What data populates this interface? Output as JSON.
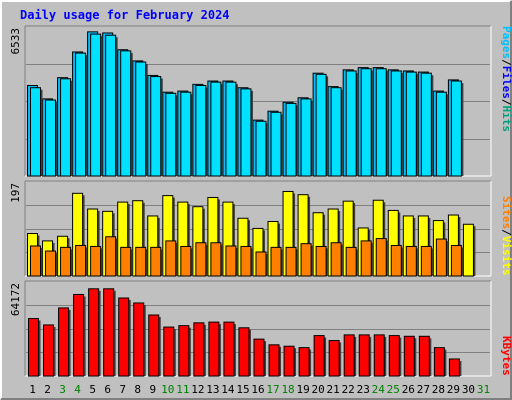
{
  "title": "Daily usage for February 2024",
  "colors": {
    "background": "#c0c0c0",
    "frame_light": "#ffffff",
    "frame_dark": "#808080",
    "title": "#0000ff",
    "gridline": "#808080",
    "axis_text": "#000000",
    "weekend_text": "#008000",
    "hits": "#00bfff",
    "files": "#00e0ff",
    "sites": "#ff8000",
    "visits": "#ffff00",
    "kbytes": "#ff0000",
    "legend_hits": "#00a080",
    "legend_files": "#0000ff",
    "legend_pages": "#00c0ff",
    "legend_sites": "#ff8000",
    "legend_visits": "#ffff00",
    "legend_kbytes": "#ff0000",
    "bar_edge": "#000000",
    "bar_shadow": "#404040"
  },
  "legend": {
    "hits": "Hits",
    "files": "Files",
    "pages": "Pages",
    "sites": "Sites",
    "visits": "Visits",
    "kbytes": "KBytes",
    "separator": "/"
  },
  "chart_data": {
    "type": "bar",
    "title": "Daily usage for February 2024",
    "x": [
      "1",
      "2",
      "3",
      "4",
      "5",
      "6",
      "7",
      "8",
      "9",
      "10",
      "11",
      "12",
      "13",
      "14",
      "15",
      "16",
      "17",
      "18",
      "19",
      "20",
      "21",
      "22",
      "23",
      "24",
      "25",
      "26",
      "27",
      "28",
      "29",
      "30",
      "31"
    ],
    "weekend_days": [
      "3",
      "4",
      "10",
      "11",
      "17",
      "18",
      "24",
      "25",
      "31"
    ],
    "panels": [
      {
        "name": "hits-files",
        "ymax_label": "6533",
        "ylim": [
          0,
          6533
        ],
        "series": [
          {
            "name": "Hits",
            "values": [
              4050,
              3450,
              4400,
              5550,
              6450,
              6400,
              5650,
              5150,
              4500,
              3750,
              3800,
              4100,
              4250,
              4250,
              3950,
              2500,
              2900,
              3300,
              3500,
              4600,
              4000,
              4750,
              4850,
              4850,
              4750,
              4700,
              4650,
              3800,
              4300,
              0,
              0
            ]
          },
          {
            "name": "Files",
            "values": [
              3950,
              3400,
              4350,
              5500,
              6350,
              6300,
              5600,
              5100,
              4450,
              3700,
              3750,
              4050,
              4200,
              4200,
              3900,
              2450,
              2850,
              3250,
              3450,
              4550,
              3950,
              4700,
              4800,
              4800,
              4700,
              4650,
              4600,
              3750,
              4250,
              0,
              0
            ]
          }
        ]
      },
      {
        "name": "visits-sites",
        "ymax_label": "197",
        "ylim": [
          0,
          197
        ],
        "series": [
          {
            "name": "Visits",
            "values": [
              92,
              76,
              86,
              179,
              145,
              140,
              160,
              163,
              130,
              174,
              160,
              150,
              170,
              160,
              125,
              103,
              118,
              183,
              176,
              137,
              145,
              162,
              104,
              164,
              142,
              130,
              130,
              120,
              132,
              112,
              0
            ]
          },
          {
            "name": "Sites",
            "values": [
              65,
              54,
              62,
              66,
              64,
              85,
              62,
              62,
              62,
              76,
              64,
              72,
              72,
              65,
              64,
              52,
              62,
              62,
              70,
              64,
              72,
              62,
              76,
              81,
              66,
              64,
              64,
              80,
              66,
              0,
              0
            ]
          }
        ]
      },
      {
        "name": "kbytes",
        "ymax_label": "64172",
        "ylim": [
          0,
          64172
        ],
        "series": [
          {
            "name": "KBytes",
            "values": [
              40500,
              36000,
              48000,
              57500,
              61500,
              61500,
              55000,
              51500,
              43000,
              34500,
              35500,
              37500,
              38000,
              38000,
              34000,
              26000,
              22000,
              21000,
              20000,
              28500,
              25000,
              29000,
              29000,
              29000,
              28500,
              28000,
              28000,
              20000,
              12000,
              0,
              0
            ]
          }
        ]
      }
    ]
  }
}
